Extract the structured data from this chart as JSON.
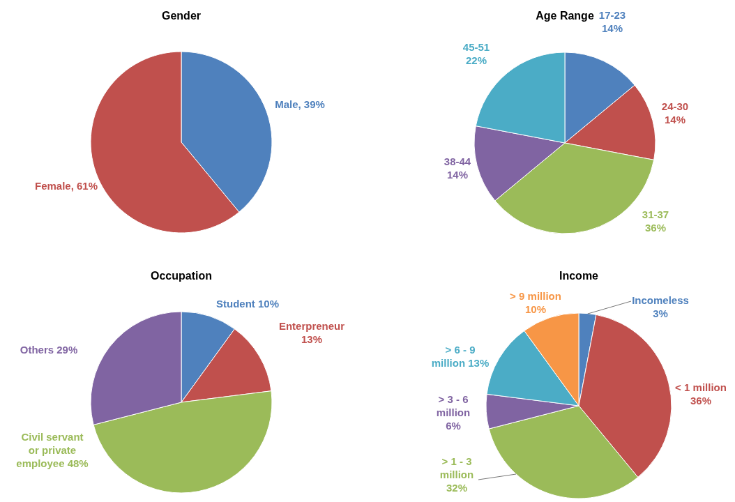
{
  "chart_data": [
    {
      "type": "pie",
      "title": "Gender",
      "categories": [
        "Male",
        "Female"
      ],
      "values": [
        39,
        61
      ],
      "colors": [
        "#4f81bd",
        "#c0504d"
      ],
      "value_labels": [
        "39%",
        "61%"
      ]
    },
    {
      "type": "pie",
      "title": "Age Range",
      "categories": [
        "17-23",
        "24-30",
        "31-37",
        "38-44",
        "45-51"
      ],
      "values": [
        14,
        14,
        36,
        14,
        22
      ],
      "colors": [
        "#4f81bd",
        "#c0504d",
        "#9bbb59",
        "#8064a2",
        "#4bacc6"
      ],
      "value_labels": [
        "14%",
        "14%",
        "36%",
        "14%",
        "22%"
      ]
    },
    {
      "type": "pie",
      "title": "Occupation",
      "categories": [
        "Student",
        "Enterpreneur",
        "Civil servant or private employee",
        "Others"
      ],
      "values": [
        10,
        13,
        48,
        29
      ],
      "colors": [
        "#4f81bd",
        "#c0504d",
        "#9bbb59",
        "#8064a2"
      ],
      "value_labels": [
        "10%",
        "13%",
        "48%",
        "29%"
      ]
    },
    {
      "type": "pie",
      "title": "Income",
      "categories": [
        "Incomeless",
        "< 1 million",
        "> 1 - 3 million",
        "> 3 - 6 million",
        "> 6 - 9 million",
        "> 9 million"
      ],
      "values": [
        3,
        36,
        32,
        6,
        13,
        10
      ],
      "colors": [
        "#4f81bd",
        "#c0504d",
        "#9bbb59",
        "#8064a2",
        "#4bacc6",
        "#f79646"
      ],
      "value_labels": [
        "3%",
        "36%",
        "32%",
        "6%",
        "13%",
        "10%"
      ]
    }
  ]
}
